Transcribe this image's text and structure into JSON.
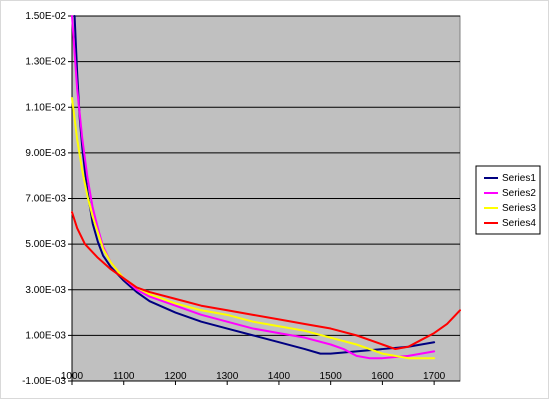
{
  "chart_data": {
    "type": "line",
    "title": "",
    "xlabel": "",
    "ylabel": "",
    "xlim": [
      1000,
      1750
    ],
    "ylim": [
      -0.001,
      0.015
    ],
    "x_ticks": [
      {
        "value": 1000,
        "label": "1000"
      },
      {
        "value": 1100,
        "label": "1100"
      },
      {
        "value": 1200,
        "label": "1200"
      },
      {
        "value": 1300,
        "label": "1300"
      },
      {
        "value": 1400,
        "label": "1400"
      },
      {
        "value": 1500,
        "label": "1500"
      },
      {
        "value": 1600,
        "label": "1600"
      },
      {
        "value": 1700,
        "label": "1700"
      }
    ],
    "y_ticks": [
      {
        "value": -0.001,
        "label": "-1.00E-03"
      },
      {
        "value": 0.001,
        "label": "1.00E-03"
      },
      {
        "value": 0.003,
        "label": "3.00E-03"
      },
      {
        "value": 0.005,
        "label": "5.00E-03"
      },
      {
        "value": 0.007,
        "label": "7.00E-03"
      },
      {
        "value": 0.009,
        "label": "9.00E-03"
      },
      {
        "value": 0.011,
        "label": "1.10E-02"
      },
      {
        "value": 0.013,
        "label": "1.30E-02"
      },
      {
        "value": 0.015,
        "label": "1.50E-02"
      }
    ],
    "grid": true,
    "legend_position": "right",
    "series": [
      {
        "name": "Series1",
        "color": "#000080",
        "points": [
          [
            1005,
            0.015
          ],
          [
            1010,
            0.0125
          ],
          [
            1015,
            0.0105
          ],
          [
            1020,
            0.0092
          ],
          [
            1025,
            0.0082
          ],
          [
            1030,
            0.0073
          ],
          [
            1040,
            0.0059
          ],
          [
            1050,
            0.0051
          ],
          [
            1060,
            0.0045
          ],
          [
            1075,
            0.004
          ],
          [
            1100,
            0.0034
          ],
          [
            1125,
            0.0029
          ],
          [
            1150,
            0.0025
          ],
          [
            1200,
            0.002
          ],
          [
            1250,
            0.0016
          ],
          [
            1300,
            0.0013
          ],
          [
            1350,
            0.001
          ],
          [
            1400,
            0.0007
          ],
          [
            1450,
            0.0004
          ],
          [
            1480,
            0.0002
          ],
          [
            1500,
            0.0002
          ],
          [
            1550,
            0.0003
          ],
          [
            1600,
            0.0004
          ],
          [
            1650,
            0.0005
          ],
          [
            1700,
            0.0007
          ]
        ]
      },
      {
        "name": "Series2",
        "color": "#ff00ff",
        "points": [
          [
            1000,
            0.015
          ],
          [
            1010,
            0.0118
          ],
          [
            1020,
            0.0096
          ],
          [
            1030,
            0.0079
          ],
          [
            1040,
            0.0066
          ],
          [
            1050,
            0.0057
          ],
          [
            1060,
            0.0049
          ],
          [
            1075,
            0.0042
          ],
          [
            1100,
            0.0035
          ],
          [
            1125,
            0.003
          ],
          [
            1150,
            0.0027
          ],
          [
            1200,
            0.0023
          ],
          [
            1250,
            0.0019
          ],
          [
            1300,
            0.0016
          ],
          [
            1350,
            0.0013
          ],
          [
            1400,
            0.0011
          ],
          [
            1450,
            0.0009
          ],
          [
            1500,
            0.0006
          ],
          [
            1525,
            0.0004
          ],
          [
            1550,
            0.0001
          ],
          [
            1575,
            0.0
          ],
          [
            1600,
            0.0
          ],
          [
            1650,
            0.0001
          ],
          [
            1700,
            0.0003
          ]
        ]
      },
      {
        "name": "Series3",
        "color": "#ffff00",
        "points": [
          [
            1000,
            0.0114
          ],
          [
            1010,
            0.0096
          ],
          [
            1020,
            0.0082
          ],
          [
            1030,
            0.0071
          ],
          [
            1040,
            0.0062
          ],
          [
            1050,
            0.0055
          ],
          [
            1060,
            0.0048
          ],
          [
            1075,
            0.0042
          ],
          [
            1100,
            0.0035
          ],
          [
            1125,
            0.0031
          ],
          [
            1150,
            0.0028
          ],
          [
            1200,
            0.0024
          ],
          [
            1250,
            0.0021
          ],
          [
            1300,
            0.0019
          ],
          [
            1350,
            0.0016
          ],
          [
            1400,
            0.0014
          ],
          [
            1450,
            0.0012
          ],
          [
            1500,
            0.0009
          ],
          [
            1550,
            0.0006
          ],
          [
            1600,
            0.0002
          ],
          [
            1650,
            0.0
          ],
          [
            1700,
            0.0
          ]
        ]
      },
      {
        "name": "Series4",
        "color": "#ff0000",
        "points": [
          [
            1000,
            0.0064
          ],
          [
            1010,
            0.0057
          ],
          [
            1025,
            0.005
          ],
          [
            1050,
            0.0044
          ],
          [
            1075,
            0.0039
          ],
          [
            1100,
            0.0035
          ],
          [
            1125,
            0.0031
          ],
          [
            1150,
            0.0029
          ],
          [
            1200,
            0.0026
          ],
          [
            1250,
            0.0023
          ],
          [
            1300,
            0.0021
          ],
          [
            1350,
            0.0019
          ],
          [
            1400,
            0.0017
          ],
          [
            1450,
            0.0015
          ],
          [
            1500,
            0.0013
          ],
          [
            1550,
            0.001
          ],
          [
            1600,
            0.0006
          ],
          [
            1625,
            0.0004
          ],
          [
            1650,
            0.0005
          ],
          [
            1675,
            0.0008
          ],
          [
            1700,
            0.0011
          ],
          [
            1725,
            0.0015
          ],
          [
            1750,
            0.0021
          ]
        ]
      }
    ]
  }
}
